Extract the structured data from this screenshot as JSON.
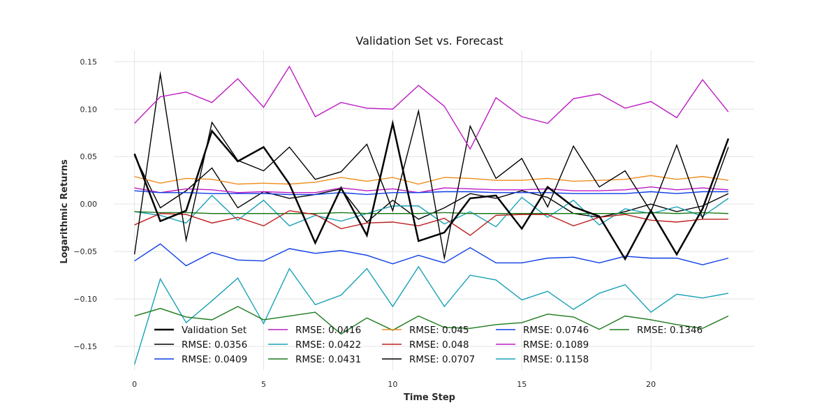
{
  "chart_data": {
    "type": "line",
    "title": "Validation Set vs. Forecast",
    "xlabel": "Time Step",
    "ylabel": "Logarithmic Returns",
    "xlim": [
      -0.8,
      24
    ],
    "ylim": [
      -0.175,
      0.162
    ],
    "xticks": [
      0,
      5,
      10,
      15,
      20
    ],
    "yticks": [
      -0.15,
      -0.1,
      -0.05,
      0.0,
      0.05,
      0.1,
      0.15
    ],
    "ytick_labels": [
      "−0.15",
      "−0.10",
      "−0.05",
      "0.00",
      "0.05",
      "0.10",
      "0.15"
    ],
    "grid": true,
    "legend_position": "lower-left",
    "x": [
      0,
      1,
      2,
      3,
      4,
      5,
      6,
      7,
      8,
      9,
      10,
      11,
      12,
      13,
      14,
      15,
      16,
      17,
      18,
      19,
      20,
      21,
      22,
      23
    ],
    "series": [
      {
        "name": "Validation Set",
        "color": "#000000",
        "width": 2.5,
        "values": [
          0.053,
          -0.018,
          -0.007,
          0.077,
          0.045,
          0.06,
          0.021,
          -0.041,
          0.017,
          -0.033,
          0.085,
          -0.039,
          -0.03,
          0.006,
          0.009,
          -0.026,
          0.018,
          -0.003,
          -0.013,
          -0.058,
          -0.007,
          -0.053,
          -0.005,
          0.069
        ]
      },
      {
        "name": "RMSE: 0.0356",
        "color": "#000000",
        "width": 1.4,
        "values": [
          0.051,
          -0.004,
          0.014,
          0.038,
          -0.004,
          0.013,
          0.006,
          0.01,
          0.016,
          -0.019,
          0.004,
          -0.016,
          -0.004,
          0.011,
          0.006,
          0.014,
          0.007,
          -0.01,
          -0.014,
          -0.008,
          0.0,
          -0.008,
          -0.002,
          0.011
        ]
      },
      {
        "name": "RMSE: 0.0409",
        "color": "#0d3de3",
        "width": 1.4,
        "values": [
          -0.06,
          -0.042,
          -0.065,
          -0.051,
          -0.059,
          -0.06,
          -0.047,
          -0.052,
          -0.049,
          -0.054,
          -0.063,
          -0.054,
          -0.062,
          -0.046,
          -0.062,
          -0.062,
          -0.057,
          -0.056,
          -0.062,
          -0.055,
          -0.057,
          -0.057,
          -0.064,
          -0.057
        ]
      },
      {
        "name": "RMSE: 0.0416",
        "color": "#bc1bc3",
        "width": 1.4,
        "values": [
          0.017,
          0.012,
          0.016,
          0.015,
          0.012,
          0.013,
          0.012,
          0.012,
          0.017,
          0.014,
          0.016,
          0.012,
          0.017,
          0.016,
          0.015,
          0.015,
          0.016,
          0.014,
          0.014,
          0.015,
          0.018,
          0.015,
          0.017,
          0.015
        ]
      },
      {
        "name": "RMSE: 0.0422",
        "color": "#18a2b6",
        "width": 1.4,
        "values": [
          -0.008,
          -0.012,
          -0.02,
          0.009,
          -0.017,
          0.004,
          -0.023,
          -0.012,
          -0.018,
          -0.01,
          -0.002,
          -0.002,
          -0.021,
          -0.008,
          -0.024,
          0.007,
          -0.014,
          0.004,
          -0.022,
          -0.005,
          -0.01,
          -0.003,
          -0.013,
          0.006
        ]
      },
      {
        "name": "RMSE: 0.0431",
        "color": "#1b7a1b",
        "width": 1.4,
        "values": [
          -0.008,
          -0.009,
          -0.009,
          -0.01,
          -0.01,
          -0.01,
          -0.01,
          -0.01,
          -0.009,
          -0.01,
          -0.01,
          -0.01,
          -0.009,
          -0.01,
          -0.01,
          -0.01,
          -0.01,
          -0.01,
          -0.01,
          -0.01,
          -0.009,
          -0.01,
          -0.009,
          -0.01
        ]
      },
      {
        "name": "RMSE: 0.045",
        "color": "#ee8d1c",
        "width": 1.4,
        "values": [
          0.029,
          0.022,
          0.027,
          0.026,
          0.021,
          0.022,
          0.021,
          0.023,
          0.028,
          0.024,
          0.028,
          0.021,
          0.028,
          0.027,
          0.025,
          0.025,
          0.027,
          0.024,
          0.025,
          0.026,
          0.03,
          0.026,
          0.029,
          0.025
        ]
      },
      {
        "name": "RMSE: 0.048",
        "color": "#bd1e1e",
        "width": 1.4,
        "values": [
          -0.022,
          -0.01,
          -0.011,
          -0.02,
          -0.014,
          -0.023,
          -0.007,
          -0.011,
          -0.026,
          -0.02,
          -0.019,
          -0.023,
          -0.015,
          -0.033,
          -0.012,
          -0.011,
          -0.011,
          -0.023,
          -0.014,
          -0.011,
          -0.017,
          -0.019,
          -0.016,
          -0.016
        ]
      },
      {
        "name": "RMSE: 0.0707",
        "color": "#000000",
        "width": 1.4,
        "values": [
          -0.053,
          0.137,
          -0.038,
          0.086,
          0.046,
          0.035,
          0.06,
          0.026,
          0.034,
          0.063,
          -0.007,
          0.098,
          -0.057,
          0.082,
          0.027,
          0.048,
          -0.003,
          0.061,
          0.018,
          0.035,
          -0.008,
          0.062,
          -0.015,
          0.06
        ]
      },
      {
        "name": "RMSE: 0.0746",
        "color": "#0d3de3",
        "width": 1.4,
        "values": [
          0.014,
          0.012,
          0.012,
          0.011,
          0.011,
          0.011,
          0.01,
          0.01,
          0.012,
          0.01,
          0.012,
          0.012,
          0.013,
          0.013,
          0.012,
          0.012,
          0.012,
          0.011,
          0.011,
          0.011,
          0.013,
          0.011,
          0.013,
          0.013
        ]
      },
      {
        "name": "RMSE: 0.1089",
        "color": "#bc1bc3",
        "width": 1.4,
        "values": [
          0.085,
          0.113,
          0.118,
          0.107,
          0.132,
          0.102,
          0.145,
          0.092,
          0.107,
          0.101,
          0.1,
          0.125,
          0.103,
          0.058,
          0.112,
          0.092,
          0.085,
          0.111,
          0.116,
          0.101,
          0.108,
          0.091,
          0.131,
          0.097
        ]
      },
      {
        "name": "RMSE: 0.1158",
        "color": "#18a2b6",
        "width": 1.4,
        "values": [
          -0.169,
          -0.079,
          -0.125,
          -0.102,
          -0.078,
          -0.126,
          -0.068,
          -0.106,
          -0.096,
          -0.068,
          -0.108,
          -0.066,
          -0.108,
          -0.075,
          -0.08,
          -0.101,
          -0.092,
          -0.111,
          -0.094,
          -0.085,
          -0.114,
          -0.095,
          -0.099,
          -0.094
        ]
      },
      {
        "name": "RMSE: 0.1346",
        "color": "#1b7a1b",
        "width": 1.4,
        "values": [
          -0.118,
          -0.11,
          -0.119,
          -0.122,
          -0.108,
          -0.122,
          -0.118,
          -0.114,
          -0.137,
          -0.12,
          -0.133,
          -0.118,
          -0.13,
          -0.131,
          -0.127,
          -0.125,
          -0.116,
          -0.119,
          -0.132,
          -0.118,
          -0.122,
          -0.127,
          -0.131,
          -0.118
        ]
      }
    ]
  }
}
